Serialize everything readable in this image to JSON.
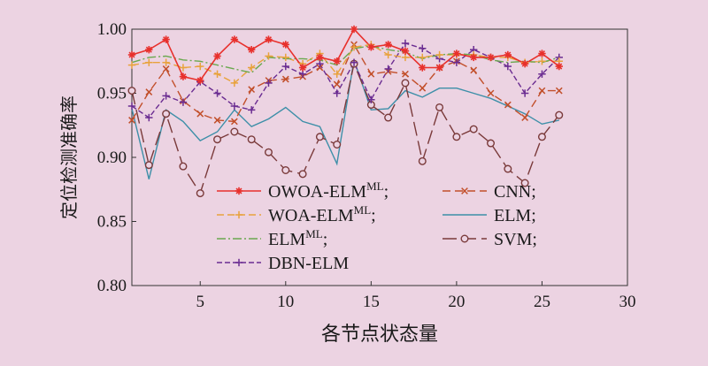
{
  "chart_data": {
    "type": "line",
    "xlabel": "各节点状态量",
    "ylabel": "定位检测准确率",
    "xlim": [
      1,
      30
    ],
    "ylim": [
      0.8,
      1.0
    ],
    "xticks": [
      5,
      10,
      15,
      20,
      25,
      30
    ],
    "yticks": [
      "0.80",
      "0.85",
      "0.90",
      "0.95",
      "1.00"
    ],
    "grid": false,
    "legend_position": "lower-center",
    "x": [
      1,
      2,
      3,
      4,
      5,
      6,
      7,
      8,
      9,
      10,
      11,
      12,
      13,
      14,
      15,
      16,
      17,
      18,
      19,
      20,
      21,
      22,
      23,
      24,
      25,
      26
    ],
    "series": [
      {
        "name_base": "OWOA-ELM",
        "name_sup": "ML",
        "name_suffix": ";",
        "color": "#e8302c",
        "dash": "",
        "marker": "star",
        "values": [
          0.98,
          0.984,
          0.992,
          0.963,
          0.96,
          0.979,
          0.992,
          0.984,
          0.992,
          0.988,
          0.97,
          0.978,
          0.975,
          1.0,
          0.986,
          0.988,
          0.983,
          0.97,
          0.97,
          0.981,
          0.978,
          0.978,
          0.98,
          0.973,
          0.981,
          0.971
        ]
      },
      {
        "name_base": "WOA-ELM",
        "name_sup": "ML",
        "name_suffix": ";",
        "color": "#e8a23c",
        "dash": "8 4",
        "marker": "plus",
        "values": [
          0.972,
          0.974,
          0.974,
          0.97,
          0.971,
          0.965,
          0.958,
          0.97,
          0.979,
          0.978,
          0.973,
          0.981,
          0.965,
          0.986,
          0.988,
          0.98,
          0.978,
          0.978,
          0.98,
          0.98,
          0.98,
          0.978,
          0.978,
          0.974,
          0.975,
          0.975
        ]
      },
      {
        "name_base": "ELM",
        "name_sup": "ML",
        "name_suffix": ";",
        "color": "#6aa84f",
        "dash": "10 3 2 3",
        "marker": "none",
        "values": [
          0.974,
          0.978,
          0.979,
          0.976,
          0.975,
          0.972,
          0.969,
          0.966,
          0.978,
          0.977,
          0.977,
          0.976,
          0.972,
          0.985,
          0.987,
          0.984,
          0.982,
          0.977,
          0.98,
          0.981,
          0.98,
          0.976,
          0.974,
          0.975,
          0.974,
          0.978
        ]
      },
      {
        "name_base": "DBN-ELM",
        "name_sup": "",
        "name_suffix": "",
        "color": "#6a2c91",
        "dash": "6 3",
        "marker": "plus",
        "values": [
          0.94,
          0.931,
          0.948,
          0.943,
          0.959,
          0.95,
          0.94,
          0.937,
          0.958,
          0.971,
          0.965,
          0.973,
          0.95,
          0.974,
          0.945,
          0.969,
          0.989,
          0.985,
          0.977,
          0.974,
          0.984,
          0.978,
          0.971,
          0.95,
          0.965,
          0.978
        ]
      },
      {
        "name_base": "CNN",
        "name_sup": "",
        "name_suffix": ";",
        "color": "#c24f2a",
        "dash": "9 5",
        "marker": "x",
        "values": [
          0.929,
          0.951,
          0.969,
          0.944,
          0.934,
          0.929,
          0.928,
          0.953,
          0.96,
          0.961,
          0.963,
          0.97,
          0.957,
          0.988,
          0.965,
          0.967,
          0.965,
          0.954,
          0.97,
          0.975,
          0.968,
          0.95,
          0.941,
          0.931,
          0.952,
          0.952
        ]
      },
      {
        "name_base": "ELM",
        "name_sup": "",
        "name_suffix": ";",
        "color": "#3d8fa8",
        "dash": "",
        "marker": "none",
        "values": [
          0.938,
          0.883,
          0.937,
          0.928,
          0.913,
          0.92,
          0.937,
          0.924,
          0.93,
          0.939,
          0.928,
          0.924,
          0.895,
          0.976,
          0.937,
          0.938,
          0.952,
          0.947,
          0.954,
          0.954,
          0.95,
          0.946,
          0.94,
          0.934,
          0.926,
          0.929
        ]
      },
      {
        "name_base": "SVM",
        "name_sup": "",
        "name_suffix": ";",
        "color": "#7a3a3a",
        "dash": "16 6",
        "marker": "circle",
        "values": [
          0.952,
          0.894,
          0.934,
          0.893,
          0.872,
          0.914,
          0.92,
          0.914,
          0.904,
          0.89,
          0.887,
          0.916,
          0.91,
          0.973,
          0.941,
          0.931,
          0.958,
          0.897,
          0.939,
          0.916,
          0.922,
          0.911,
          0.891,
          0.88,
          0.916,
          0.933
        ]
      }
    ]
  }
}
